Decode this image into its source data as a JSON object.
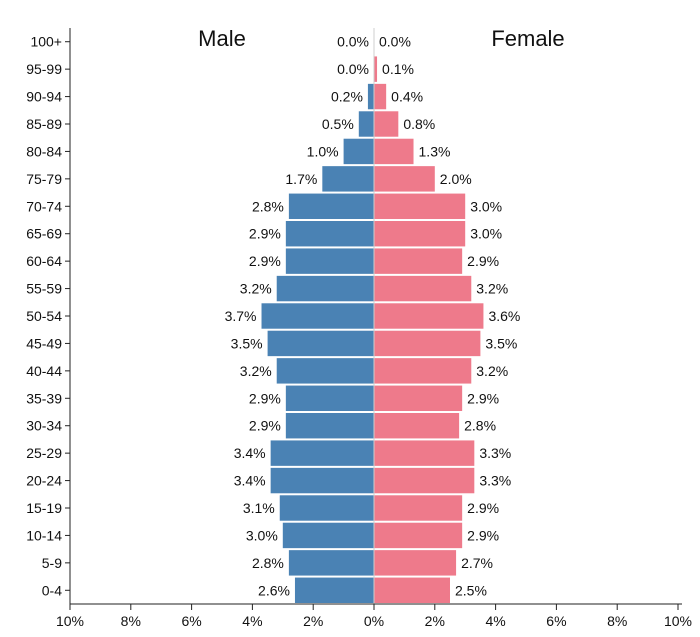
{
  "chart_data": {
    "type": "bar",
    "orientation": "horizontal-population-pyramid",
    "categories": [
      "0-4",
      "5-9",
      "10-14",
      "15-19",
      "20-24",
      "25-29",
      "30-34",
      "35-39",
      "40-44",
      "45-49",
      "50-54",
      "55-59",
      "60-64",
      "65-69",
      "70-74",
      "75-79",
      "80-84",
      "85-89",
      "90-94",
      "95-99",
      "100+"
    ],
    "series": [
      {
        "name": "Male",
        "color": "#4a82b4",
        "values": [
          2.6,
          2.8,
          3.0,
          3.1,
          3.4,
          3.4,
          2.9,
          2.9,
          3.2,
          3.5,
          3.7,
          3.2,
          2.9,
          2.9,
          2.8,
          1.7,
          1.0,
          0.5,
          0.2,
          0.0,
          0.0
        ],
        "labels": [
          "2.6%",
          "2.8%",
          "3.0%",
          "3.1%",
          "3.4%",
          "3.4%",
          "2.9%",
          "2.9%",
          "3.2%",
          "3.5%",
          "3.7%",
          "3.2%",
          "2.9%",
          "2.9%",
          "2.8%",
          "1.7%",
          "1.0%",
          "0.5%",
          "0.2%",
          "0.0%",
          "0.0%"
        ]
      },
      {
        "name": "Female",
        "color": "#ee7a8b",
        "values": [
          2.5,
          2.7,
          2.9,
          2.9,
          3.3,
          3.3,
          2.8,
          2.9,
          3.2,
          3.5,
          3.6,
          3.2,
          2.9,
          3.0,
          3.0,
          2.0,
          1.3,
          0.8,
          0.4,
          0.1,
          0.0
        ],
        "labels": [
          "2.5%",
          "2.7%",
          "2.9%",
          "2.9%",
          "3.3%",
          "3.3%",
          "2.8%",
          "2.9%",
          "3.2%",
          "3.5%",
          "3.6%",
          "3.2%",
          "2.9%",
          "3.0%",
          "3.0%",
          "2.0%",
          "1.3%",
          "0.8%",
          "0.4%",
          "0.1%",
          "0.0%"
        ]
      }
    ],
    "x_ticks": [
      "10%",
      "8%",
      "6%",
      "4%",
      "2%",
      "0%",
      "2%",
      "4%",
      "6%",
      "8%",
      "10%"
    ],
    "x_range": [
      -10,
      10
    ],
    "titles": {
      "left": "Male",
      "right": "Female"
    },
    "grid": false
  }
}
